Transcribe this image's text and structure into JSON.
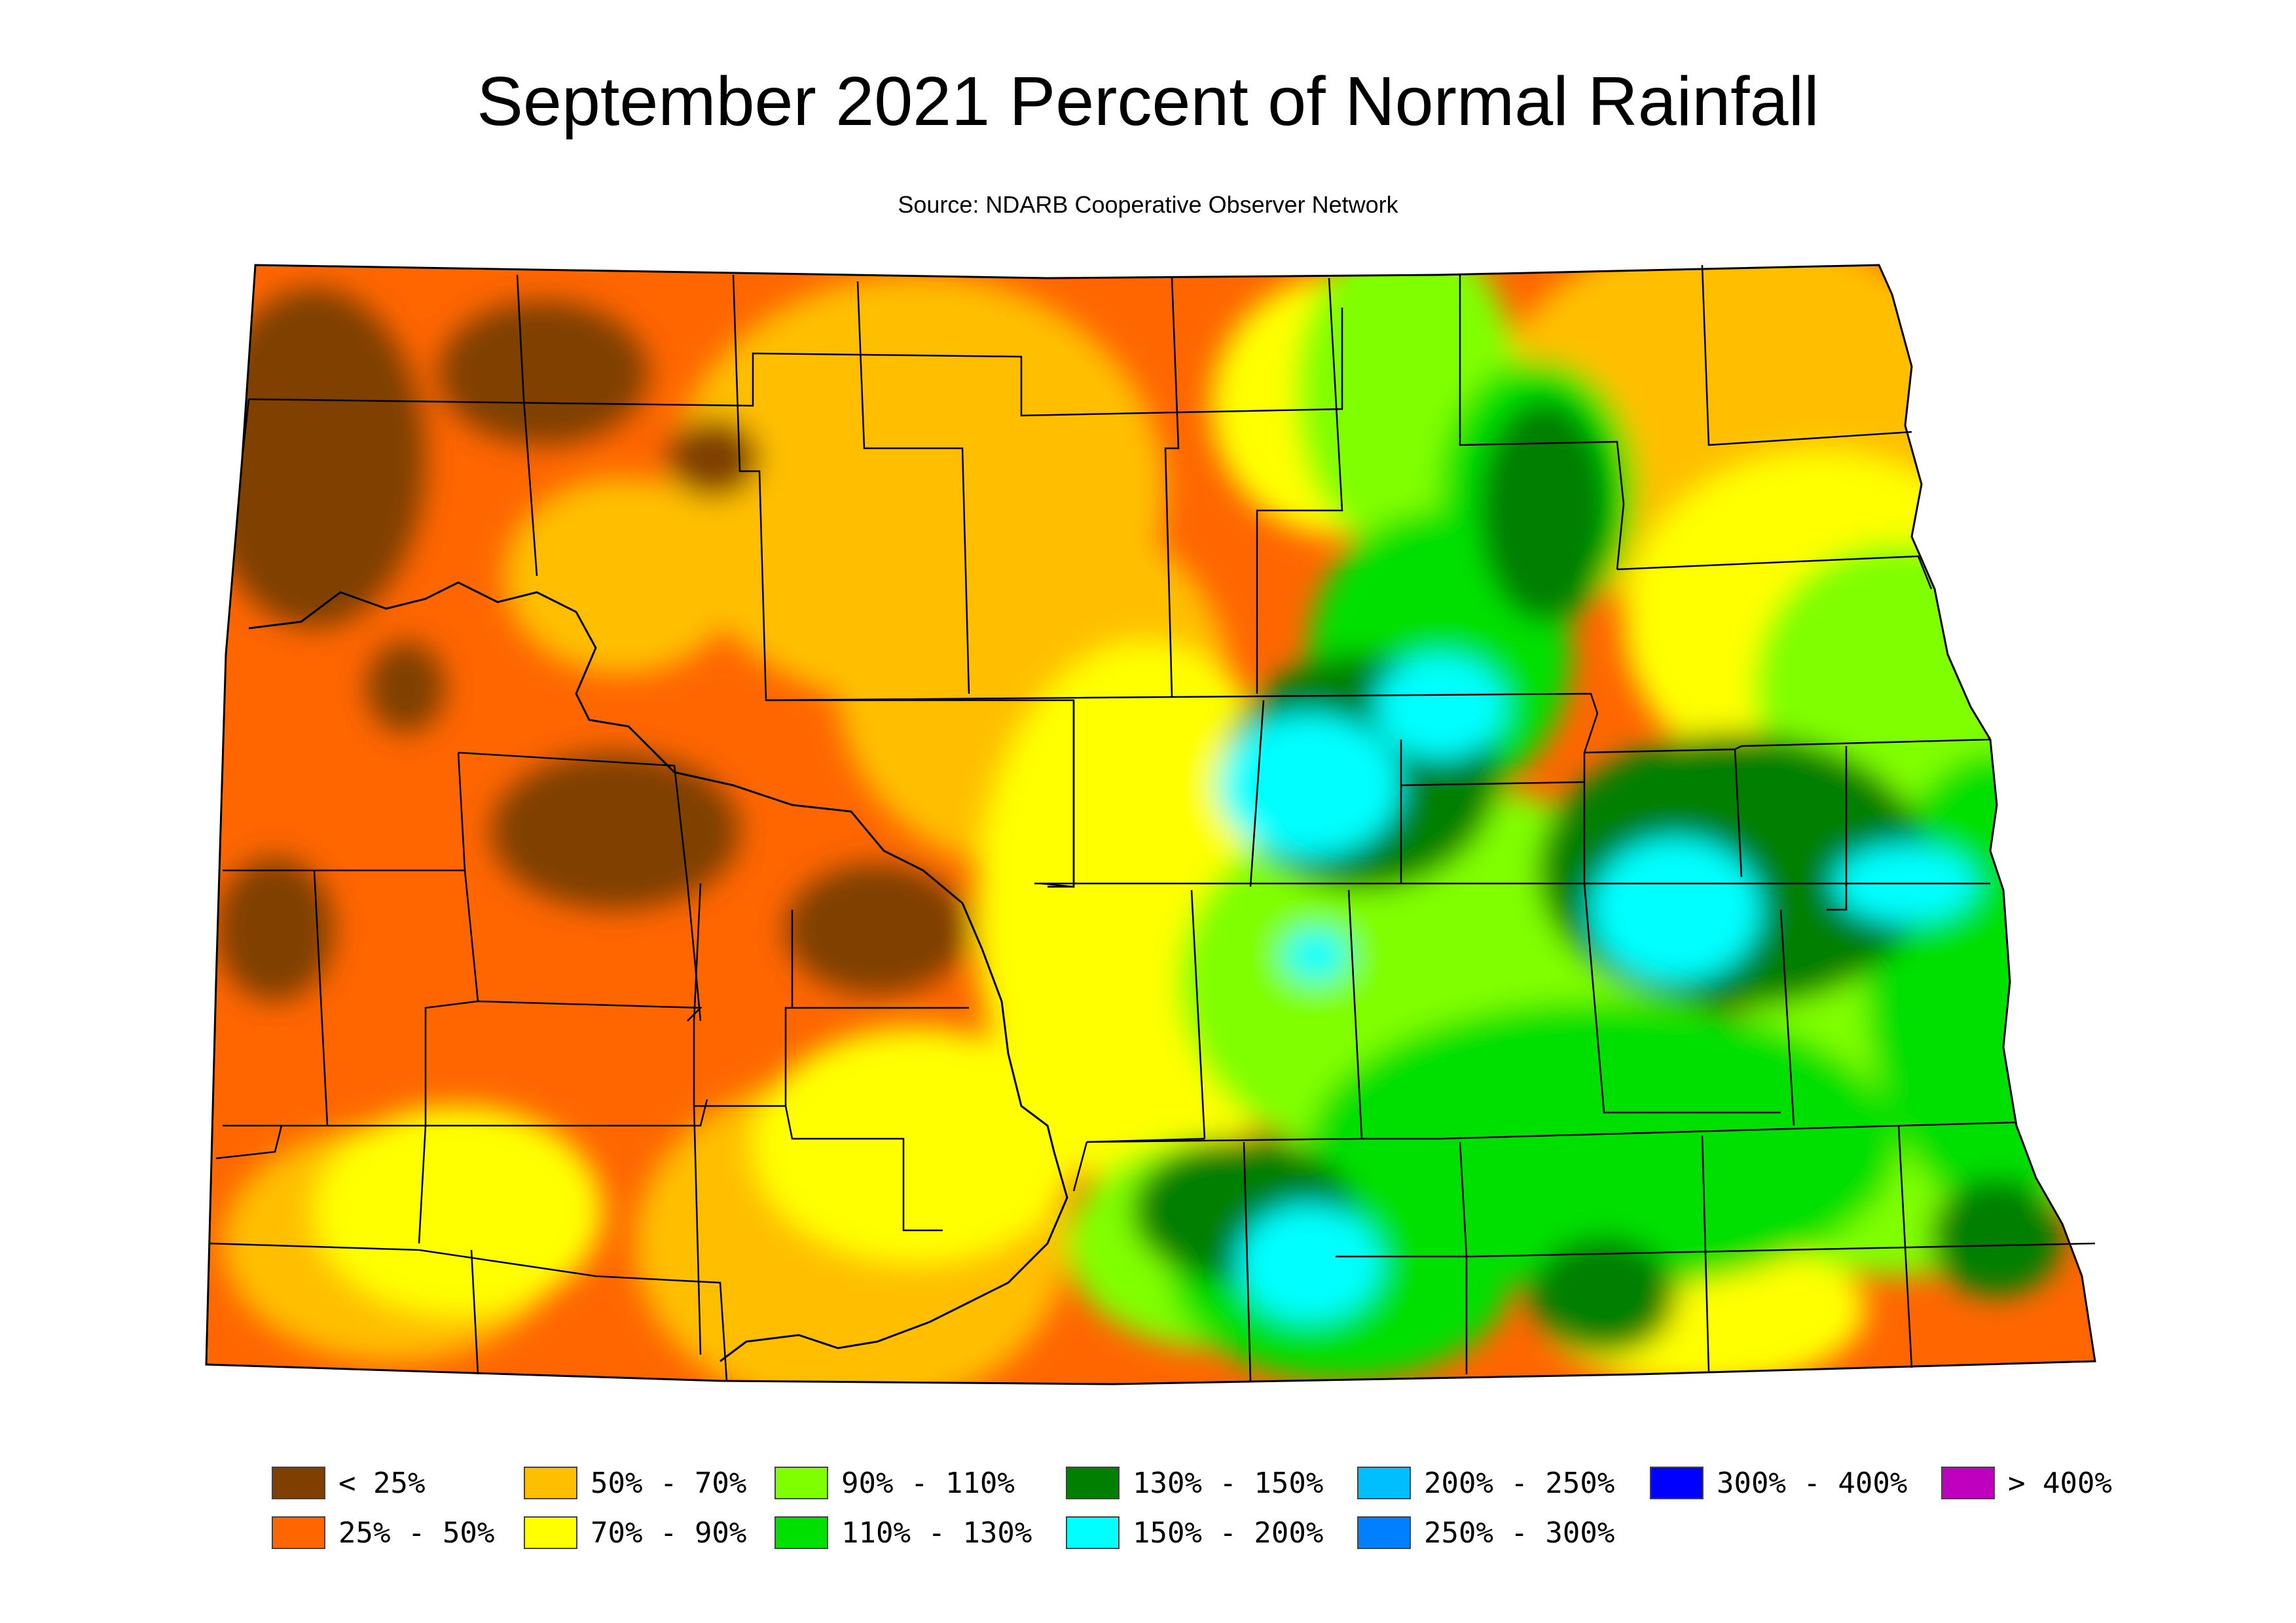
{
  "title": "September 2021 Percent of Normal Rainfall",
  "subtitle": "Source: NDARB Cooperative Observer Network",
  "legend": [
    {
      "label": "< 25%",
      "color": "#7f3f00"
    },
    {
      "label": "25% - 50%",
      "color": "#ff6600"
    },
    {
      "label": "50% - 70%",
      "color": "#ffbf00"
    },
    {
      "label": "70% - 90%",
      "color": "#ffff00"
    },
    {
      "label": "90% - 110%",
      "color": "#80ff00"
    },
    {
      "label": "110% - 130%",
      "color": "#00e000"
    },
    {
      "label": "130% - 150%",
      "color": "#007f00"
    },
    {
      "label": "150% - 200%",
      "color": "#00ffff"
    },
    {
      "label": "200% - 250%",
      "color": "#00bfff"
    },
    {
      "label": "250% - 300%",
      "color": "#0080ff"
    },
    {
      "label": "300% - 400%",
      "color": "#0000ff"
    },
    {
      "label": "> 400%",
      "color": "#bf00bf"
    }
  ]
}
